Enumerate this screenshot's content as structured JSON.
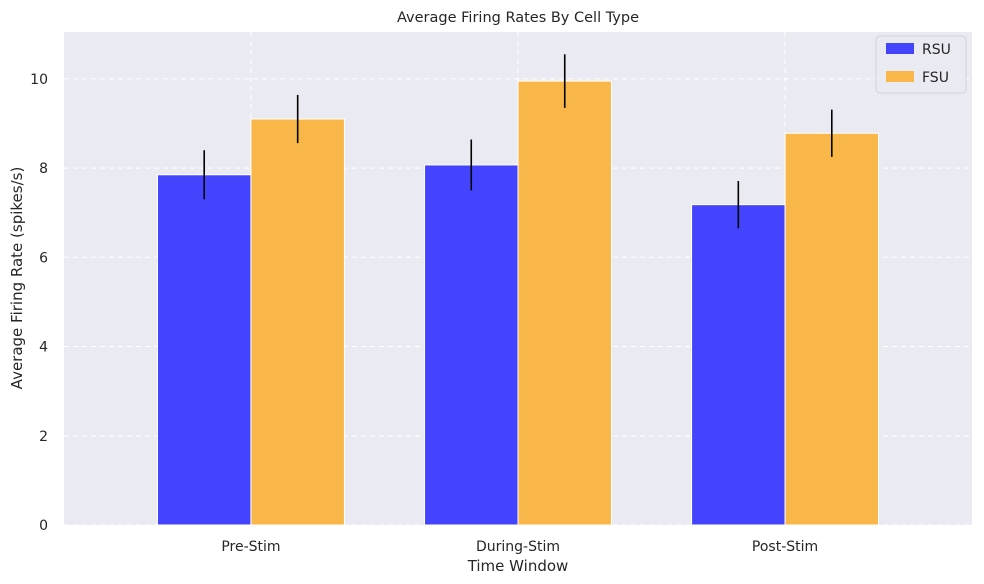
{
  "chart_data": {
    "type": "bar",
    "title": "Average Firing Rates By Cell Type",
    "xlabel": "Time Window",
    "ylabel": "Average Firing Rate (spikes/s)",
    "categories": [
      "Pre-Stim",
      "During-Stim",
      "Post-Stim"
    ],
    "series": [
      {
        "name": "RSU",
        "values": [
          7.85,
          8.07,
          7.18
        ],
        "errors": [
          0.55,
          0.57,
          0.53
        ],
        "color": "#4444ff"
      },
      {
        "name": "FSU",
        "values": [
          9.1,
          9.95,
          8.78
        ],
        "errors": [
          0.54,
          0.6,
          0.53
        ],
        "color": "#f8b748"
      }
    ],
    "ylim": [
      0,
      11.05
    ],
    "yticks": [
      "0",
      "2",
      "4",
      "6",
      "8",
      "10"
    ],
    "grid": true,
    "legend": "top-right",
    "colors": {
      "background": "#eaeaf2",
      "grid": "#ffffff",
      "errorbar": "#000000"
    }
  }
}
